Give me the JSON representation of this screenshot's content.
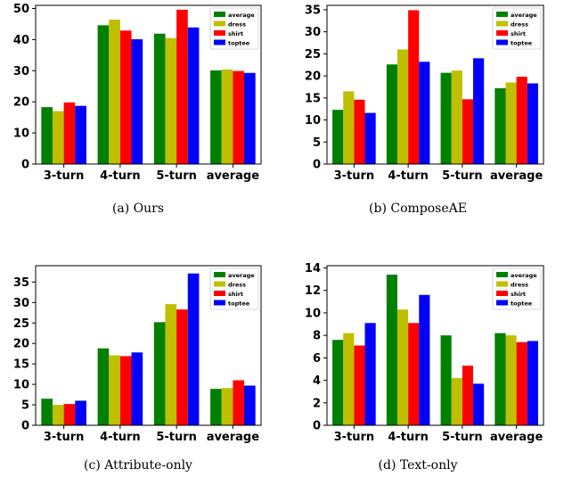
{
  "legend": [
    "average",
    "dress",
    "shirt",
    "toptee"
  ],
  "colors": {
    "average": "#008000",
    "dress": "#bfbf00",
    "shirt": "#ff0000",
    "toptee": "#0000ff"
  },
  "chart_data": [
    {
      "type": "bar",
      "caption": "(a)  Ours",
      "categories": [
        "3-turn",
        "4-turn",
        "5-turn",
        "average"
      ],
      "series": [
        {
          "name": "average",
          "values": [
            18.3,
            44.6,
            41.9,
            30.1
          ]
        },
        {
          "name": "dress",
          "values": [
            17.0,
            46.4,
            40.5,
            30.4
          ]
        },
        {
          "name": "shirt",
          "values": [
            19.8,
            42.9,
            49.6,
            29.9
          ]
        },
        {
          "name": "toptee",
          "values": [
            18.7,
            40.1,
            43.9,
            29.3
          ]
        }
      ],
      "ylim": [
        0,
        51
      ],
      "yticks": [
        0,
        10,
        20,
        30,
        40,
        50
      ]
    },
    {
      "type": "bar",
      "caption": "(b)  ComposeAE",
      "categories": [
        "3-turn",
        "4-turn",
        "5-turn",
        "average"
      ],
      "series": [
        {
          "name": "average",
          "values": [
            12.3,
            22.6,
            20.7,
            17.2
          ]
        },
        {
          "name": "dress",
          "values": [
            16.5,
            26.0,
            21.2,
            18.5
          ]
        },
        {
          "name": "shirt",
          "values": [
            14.6,
            34.9,
            14.7,
            19.8
          ]
        },
        {
          "name": "toptee",
          "values": [
            11.6,
            23.2,
            24.0,
            18.3
          ]
        }
      ],
      "ylim": [
        0,
        36
      ],
      "yticks": [
        0,
        5,
        10,
        15,
        20,
        25,
        30,
        35
      ]
    },
    {
      "type": "bar",
      "caption": "(c)  Attribute-only",
      "categories": [
        "3-turn",
        "4-turn",
        "5-turn",
        "average"
      ],
      "series": [
        {
          "name": "average",
          "values": [
            6.5,
            18.8,
            25.2,
            8.9
          ]
        },
        {
          "name": "dress",
          "values": [
            5.0,
            17.1,
            29.6,
            9.1
          ]
        },
        {
          "name": "shirt",
          "values": [
            5.2,
            16.9,
            28.3,
            11.0
          ]
        },
        {
          "name": "toptee",
          "values": [
            6.0,
            17.8,
            37.1,
            9.7
          ]
        }
      ],
      "ylim": [
        0,
        39
      ],
      "yticks": [
        0,
        5,
        10,
        15,
        20,
        25,
        30,
        35
      ]
    },
    {
      "type": "bar",
      "caption": "(d)  Text-only",
      "categories": [
        "3-turn",
        "4-turn",
        "5-turn",
        "average"
      ],
      "series": [
        {
          "name": "average",
          "values": [
            7.6,
            13.4,
            8.0,
            8.2
          ]
        },
        {
          "name": "dress",
          "values": [
            8.2,
            10.3,
            4.2,
            8.0
          ]
        },
        {
          "name": "shirt",
          "values": [
            7.1,
            9.1,
            5.3,
            7.4
          ]
        },
        {
          "name": "toptee",
          "values": [
            9.1,
            11.6,
            3.7,
            7.5
          ]
        }
      ],
      "ylim": [
        0,
        14.2
      ],
      "yticks": [
        0,
        2,
        4,
        6,
        8,
        10,
        12,
        14
      ]
    }
  ]
}
